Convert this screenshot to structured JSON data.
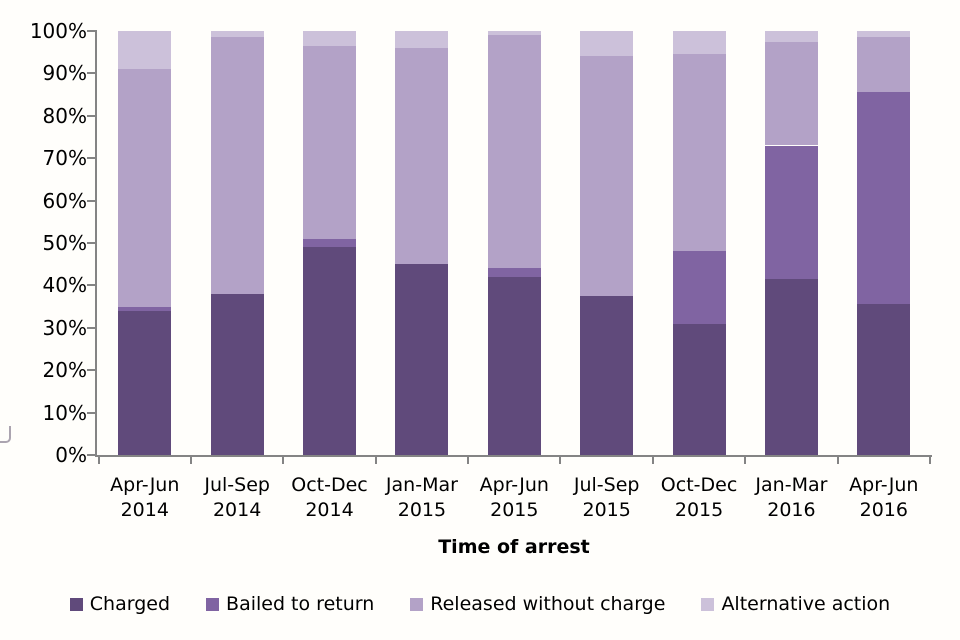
{
  "chart_data": {
    "type": "bar",
    "stacked": true,
    "percent_stacked": true,
    "title": "",
    "xlabel": "Time of arrest",
    "ylabel": "",
    "ylim": [
      0,
      100
    ],
    "yticks": [
      0,
      10,
      20,
      30,
      40,
      50,
      60,
      70,
      80,
      90,
      100
    ],
    "ytick_suffix": "%",
    "grid": false,
    "legend_position": "bottom",
    "axis_color": "#848484",
    "categories": [
      "Apr-Jun 2014",
      "Jul-Sep 2014",
      "Oct-Dec 2014",
      "Jan-Mar 2015",
      "Apr-Jun 2015",
      "Jul-Sep 2015",
      "Oct-Dec 2015",
      "Jan-Mar 2016",
      "Apr-Jun 2016"
    ],
    "series": [
      {
        "name": "Charged",
        "color": "#604a7b",
        "values": [
          34,
          38,
          49,
          45,
          42,
          37.5,
          31,
          41.5,
          35.5
        ]
      },
      {
        "name": "Bailed to return",
        "color": "#8064a2",
        "values": [
          1,
          0,
          2,
          0,
          2,
          0,
          17,
          31.5,
          50
        ]
      },
      {
        "name": "Released without charge",
        "color": "#b3a2c7",
        "values": [
          56,
          60.5,
          45.5,
          51,
          55,
          56.5,
          46.5,
          24.5,
          13
        ]
      },
      {
        "name": "Alternative action",
        "color": "#ccc1da",
        "values": [
          9,
          1.5,
          3.5,
          4,
          1,
          6,
          5.5,
          2.5,
          1.5
        ]
      }
    ]
  }
}
